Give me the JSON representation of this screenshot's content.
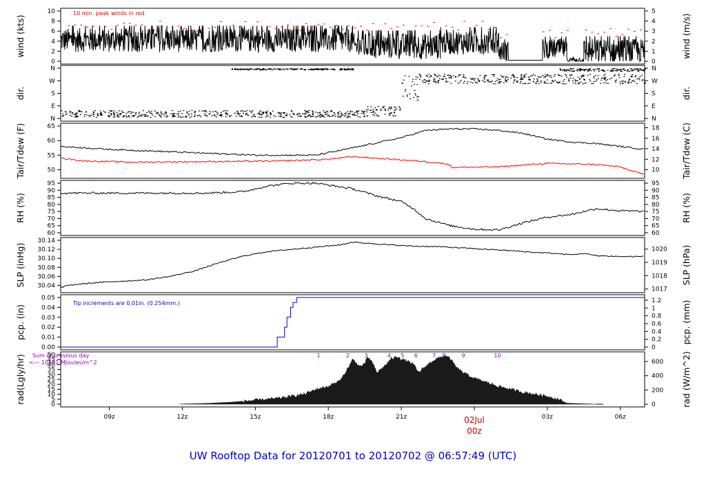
{
  "title": "UW Rooftop Data for 20120701  to  20120702 @ 06:57:49  (UTC)",
  "x_axis": {
    "tick_labels": [
      "09z",
      "12z",
      "15z",
      "18z",
      "21z",
      "03z",
      "06z"
    ],
    "date_label": "02Jul",
    "date_hour_label": "00z"
  },
  "chart_data": [
    {
      "type": "line",
      "name": "wind",
      "ylabel_left": "wind (kts)",
      "ylabel_right": "wind (m/s)",
      "ylim": [
        0,
        10
      ],
      "ylim_right": [
        0,
        5
      ],
      "yticks_left": [
        "0",
        "2",
        "4",
        "6",
        "8",
        "10"
      ],
      "yticks_right": [
        "0",
        "1",
        "2",
        "3",
        "4",
        "5"
      ],
      "annotation": "10 min. peak winds in red",
      "colors": {
        "line": "#000000",
        "peaks": "#ff0000"
      },
      "segments": [
        {
          "x": [
            7.0,
            19.0
          ],
          "mean": 4.2,
          "amp": 2.4
        },
        {
          "x": [
            19.0,
            22.6
          ],
          "mean": 3.0,
          "amp": 2.6
        },
        {
          "x": [
            22.6,
            25.0
          ],
          "mean": 3.8,
          "amp": 2.5
        },
        {
          "x": [
            25.0,
            25.4
          ],
          "mean": 2.0,
          "amp": 2.0
        },
        {
          "x": [
            25.4,
            26.8
          ],
          "mean": 0.2,
          "amp": 0.0
        },
        {
          "x": [
            26.8,
            27.8
          ],
          "mean": 2.5,
          "amp": 2.0
        },
        {
          "x": [
            27.8,
            28.5
          ],
          "mean": 0.3,
          "amp": 0.5
        },
        {
          "x": [
            28.5,
            31.0
          ],
          "mean": 2.0,
          "amp": 2.5
        }
      ],
      "peaks_level": [
        6.0,
        8.0
      ]
    },
    {
      "type": "scatter",
      "name": "direction",
      "ylabel_left": "dir.",
      "ylabel_right": "dir.",
      "yticks_left": [
        "N",
        "E",
        "S",
        "W",
        "N"
      ],
      "yticks_right": [
        "N",
        "E",
        "S",
        "W",
        "N"
      ],
      "clusters": [
        {
          "x": [
            7.0,
            19.5
          ],
          "dir_deg": [
            10,
            60
          ]
        },
        {
          "x": [
            19.5,
            21.0
          ],
          "dir_deg": [
            20,
            90
          ]
        },
        {
          "x": [
            21.0,
            21.7
          ],
          "dir_deg": [
            130,
            310
          ]
        },
        {
          "x": [
            21.7,
            31.0
          ],
          "dir_deg": [
            250,
            320
          ]
        },
        {
          "x": [
            14.0,
            19.0
          ],
          "dir_deg": [
            350,
            360
          ]
        },
        {
          "x": [
            27.5,
            31.0
          ],
          "dir_deg": [
            340,
            360
          ]
        }
      ]
    },
    {
      "type": "line",
      "name": "temperature",
      "ylabel_left": "Tair/Tdew (F)",
      "ylabel_right": "Tair/Tdew (C)",
      "ylim": [
        48,
        65
      ],
      "ylim_right": [
        8.89,
        18.33
      ],
      "yticks_left": [
        "50",
        "55",
        "60",
        "65"
      ],
      "yticks_right": [
        "10",
        "12",
        "14",
        "16",
        "18"
      ],
      "series": [
        {
          "name": "Tair",
          "color": "#000000",
          "x": [
            7.0,
            9.0,
            12.0,
            15.0,
            17.5,
            19.0,
            21.0,
            22.0,
            23.0,
            24.0,
            25.0,
            26.0,
            27.0,
            28.0,
            29.0,
            30.0,
            31.0
          ],
          "y": [
            58.0,
            57.0,
            56.0,
            55.0,
            55.0,
            57.5,
            61.0,
            63.5,
            64.0,
            64.0,
            63.5,
            62.5,
            60.5,
            59.5,
            59.0,
            58.0,
            57.0
          ]
        },
        {
          "name": "Tdew",
          "color": "#ff0000",
          "x": [
            7.0,
            8.0,
            10.0,
            13.0,
            16.0,
            18.0,
            19.0,
            21.0,
            22.0,
            22.9,
            23.1,
            25.0,
            27.0,
            28.0,
            29.0,
            30.0,
            30.5,
            31.0
          ],
          "y": [
            54.0,
            53.0,
            52.6,
            52.8,
            53.0,
            53.6,
            54.5,
            53.4,
            52.8,
            52.0,
            50.8,
            51.0,
            52.2,
            52.0,
            51.8,
            51.0,
            49.5,
            48.5
          ]
        }
      ]
    },
    {
      "type": "line",
      "name": "relative_humidity",
      "ylabel_left": "RH (%)",
      "ylabel_right": "RH (%)",
      "ylim": [
        60,
        95
      ],
      "yticks_left": [
        "60",
        "65",
        "70",
        "75",
        "80",
        "85",
        "90",
        "95"
      ],
      "yticks_right": [
        "60",
        "65",
        "70",
        "75",
        "80",
        "85",
        "90",
        "95"
      ],
      "series": [
        {
          "name": "RH",
          "color": "#000000",
          "x": [
            7.0,
            10.0,
            13.0,
            14.5,
            15.5,
            16.5,
            17.5,
            19.0,
            20.0,
            21.0,
            21.5,
            22.0,
            23.0,
            24.0,
            25.0,
            26.0,
            27.0,
            28.0,
            29.0,
            30.0,
            31.0
          ],
          "y": [
            88.0,
            88.0,
            88.0,
            89.0,
            93.0,
            95.0,
            95.0,
            91.0,
            86.0,
            82.0,
            77.0,
            70.0,
            65.0,
            62.5,
            62.0,
            67.0,
            71.0,
            73.0,
            77.0,
            75.5,
            75.0
          ]
        }
      ]
    },
    {
      "type": "line",
      "name": "sea_level_pressure",
      "ylabel_left": "SLP (inHg)",
      "ylabel_right": "SLP (hPa)",
      "ylim": [
        30.03,
        30.14
      ],
      "yticks_left": [
        "30.04",
        "30.06",
        "30.08",
        "30.10",
        "30.12",
        "30.14"
      ],
      "yticks_right": [
        "1017",
        "1018",
        "1019",
        "1020"
      ],
      "series": [
        {
          "name": "SLP",
          "color": "#000000",
          "x": [
            7.0,
            7.3,
            8.0,
            9.0,
            10.5,
            11.5,
            12.5,
            13.5,
            14.5,
            15.5,
            16.5,
            17.5,
            18.5,
            19.0,
            19.5,
            20.5,
            21.5,
            22.5,
            23.5,
            24.5,
            25.5,
            26.5,
            27.0,
            27.5,
            28.0,
            28.5,
            29.0,
            30.0,
            31.0
          ],
          "y": [
            30.035,
            30.04,
            30.044,
            30.048,
            30.052,
            30.06,
            30.072,
            30.09,
            30.105,
            30.115,
            30.12,
            30.125,
            30.13,
            30.136,
            30.134,
            30.13,
            30.127,
            30.126,
            30.123,
            30.12,
            30.117,
            30.113,
            30.112,
            30.11,
            30.108,
            30.111,
            30.106,
            30.104,
            30.104
          ]
        }
      ]
    },
    {
      "type": "line",
      "name": "precipitation",
      "ylabel_left": "pcp. (in)",
      "ylabel_right": "pcp. (mm)",
      "ylim": [
        0,
        0.05
      ],
      "ylim_right": [
        0,
        1.27
      ],
      "yticks_left": [
        "0.00",
        "0.01",
        "0.02",
        "0.03",
        "0.04",
        "0.05"
      ],
      "yticks_right": [
        "0",
        "0.2",
        "0.4",
        "0.6",
        "0.8",
        "1",
        "1.2"
      ],
      "annotation": "Tip increments are 0.01in. (0.254mm.)",
      "series": [
        {
          "name": "pcp",
          "color": "#0000cc",
          "x": [
            7.0,
            15.9,
            15.9,
            16.2,
            16.2,
            16.3,
            16.3,
            16.45,
            16.45,
            16.55,
            16.55,
            16.7,
            16.7,
            31.0
          ],
          "y": [
            0.0,
            0.0,
            0.01,
            0.01,
            0.02,
            0.02,
            0.03,
            0.03,
            0.04,
            0.04,
            0.045,
            0.045,
            0.05,
            0.05
          ]
        }
      ]
    },
    {
      "type": "area",
      "name": "radiation",
      "ylabel_left": "rad(Lgly/hr)",
      "ylabel_right": "rad (W/m^2)",
      "ylim": [
        0,
        50
      ],
      "ylim_right": [
        0,
        697
      ],
      "yticks_left": [
        "0",
        "5",
        "10",
        "15",
        "20",
        "25",
        "30",
        "35",
        "40",
        "45",
        "50"
      ],
      "yticks_right": [
        "0",
        "200",
        "400",
        "600"
      ],
      "annotation_line1": "Sum of previous day",
      "annotation_line2": "<--- 10591 MJoules/m^2",
      "event_marks": [
        "1",
        "2",
        "3",
        "4",
        "5",
        "6",
        "7",
        "8",
        "9",
        "10"
      ],
      "event_marks_x": [
        17.6,
        18.8,
        19.55,
        20.5,
        21.05,
        21.6,
        22.35,
        22.75,
        23.55,
        24.95
      ],
      "series": [
        {
          "name": "rad",
          "color": "#1a1a1a",
          "x": [
            11.9,
            13.0,
            14.0,
            15.0,
            16.0,
            17.0,
            17.5,
            18.0,
            18.5,
            18.8,
            19.0,
            19.3,
            19.5,
            19.6,
            19.8,
            20.0,
            20.3,
            20.6,
            20.9,
            21.0,
            21.2,
            21.5,
            21.7,
            22.0,
            22.3,
            22.6,
            22.8,
            23.0,
            23.3,
            23.6,
            24.0,
            24.5,
            25.0,
            26.0,
            27.0,
            27.3,
            27.5,
            27.8,
            29.0
          ],
          "y": [
            0.1,
            0.8,
            2.0,
            4.0,
            6.0,
            10.0,
            15.0,
            18.0,
            24.0,
            36.0,
            45.0,
            38.0,
            40.0,
            48.0,
            42.0,
            32.0,
            38.0,
            46.0,
            48.0,
            45.0,
            44.0,
            40.0,
            32.0,
            38.0,
            44.0,
            47.0,
            49.0,
            46.0,
            36.0,
            31.0,
            26.0,
            22.0,
            18.0,
            12.0,
            8.0,
            6.0,
            4.5,
            1.0,
            0.0
          ]
        }
      ]
    }
  ]
}
